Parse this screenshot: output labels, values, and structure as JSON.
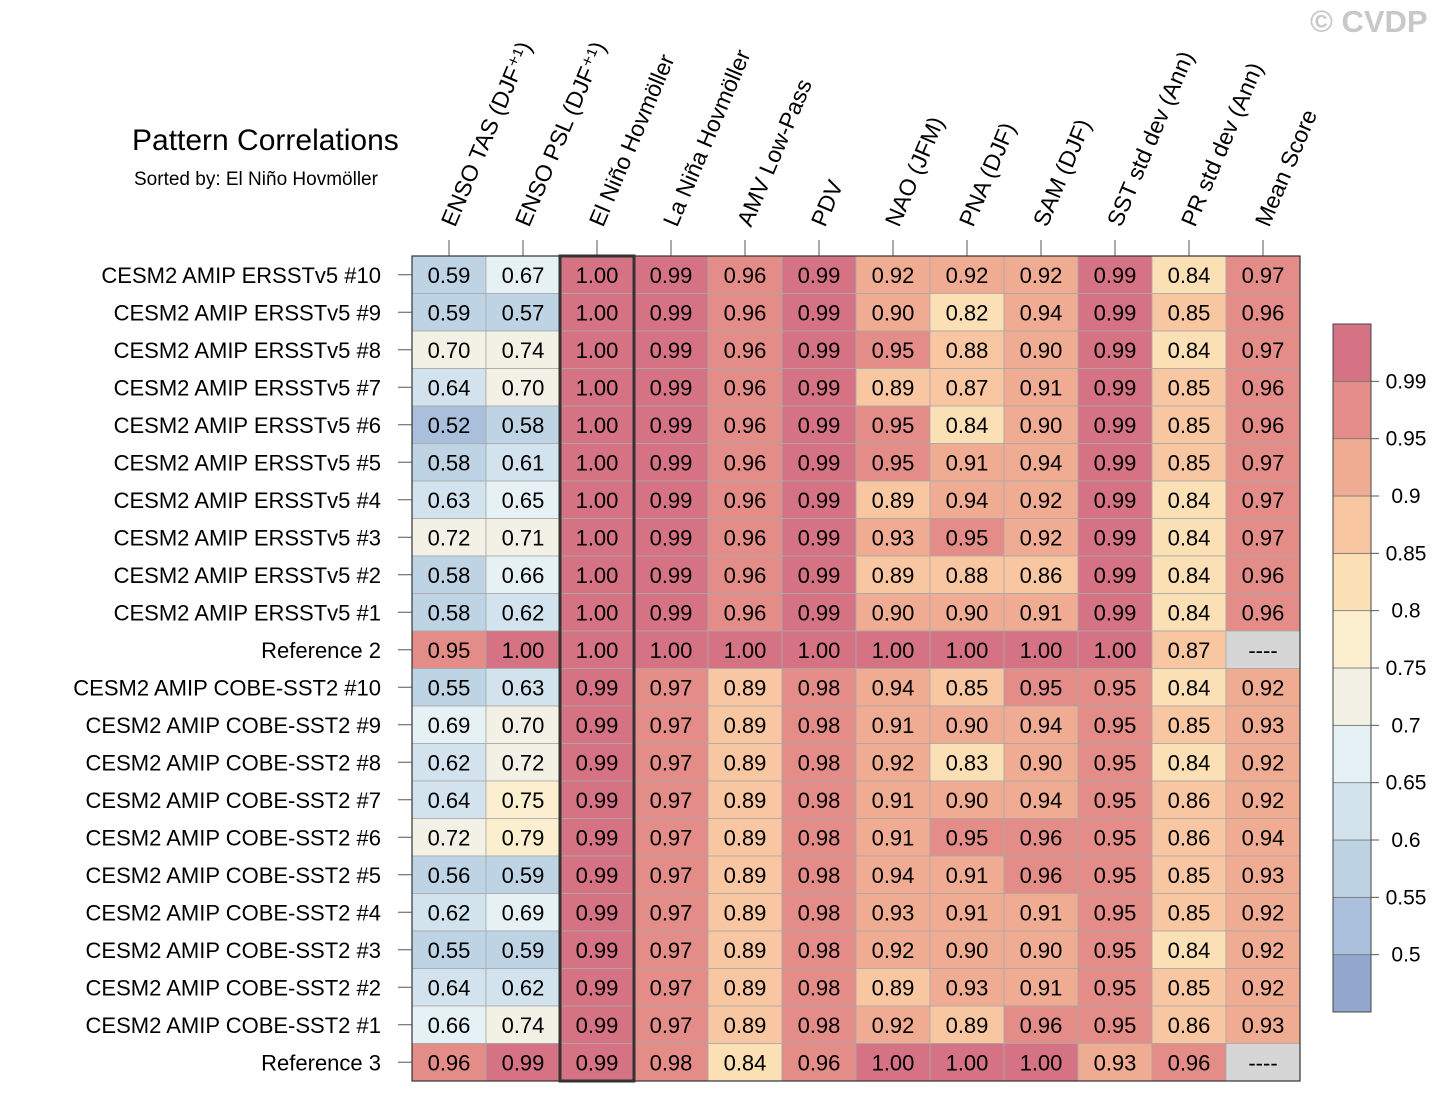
{
  "watermark": "© CVDP",
  "chart_data": {
    "type": "heatmap",
    "title": "Pattern Correlations",
    "subtitle": "Sorted by: El Niño Hovmöller",
    "highlighted_column": "El Niño Hovmöller",
    "columns": [
      "ENSO TAS (DJF⁺¹)",
      "ENSO PSL (DJF⁺¹)",
      "El Niño Hovmöller",
      "La Niña Hovmöller",
      "AMV Low-Pass",
      "PDV",
      "NAO (JFM)",
      "PNA (DJF)",
      "SAM (DJF)",
      "SST std dev (Ann)",
      "PR std dev (Ann)",
      "Mean Score"
    ],
    "rows": [
      {
        "label": "CESM2 AMIP ERSSTv5 #10",
        "values": [
          "0.59",
          "0.67",
          "1.00",
          "0.99",
          "0.96",
          "0.99",
          "0.92",
          "0.92",
          "0.92",
          "0.99",
          "0.84",
          "0.97"
        ]
      },
      {
        "label": "CESM2 AMIP ERSSTv5 #9",
        "values": [
          "0.59",
          "0.57",
          "1.00",
          "0.99",
          "0.96",
          "0.99",
          "0.90",
          "0.82",
          "0.94",
          "0.99",
          "0.85",
          "0.96"
        ]
      },
      {
        "label": "CESM2 AMIP ERSSTv5 #8",
        "values": [
          "0.70",
          "0.74",
          "1.00",
          "0.99",
          "0.96",
          "0.99",
          "0.95",
          "0.88",
          "0.90",
          "0.99",
          "0.84",
          "0.97"
        ]
      },
      {
        "label": "CESM2 AMIP ERSSTv5 #7",
        "values": [
          "0.64",
          "0.70",
          "1.00",
          "0.99",
          "0.96",
          "0.99",
          "0.89",
          "0.87",
          "0.91",
          "0.99",
          "0.85",
          "0.96"
        ]
      },
      {
        "label": "CESM2 AMIP ERSSTv5 #6",
        "values": [
          "0.52",
          "0.58",
          "1.00",
          "0.99",
          "0.96",
          "0.99",
          "0.95",
          "0.84",
          "0.90",
          "0.99",
          "0.85",
          "0.96"
        ]
      },
      {
        "label": "CESM2 AMIP ERSSTv5 #5",
        "values": [
          "0.58",
          "0.61",
          "1.00",
          "0.99",
          "0.96",
          "0.99",
          "0.95",
          "0.91",
          "0.94",
          "0.99",
          "0.85",
          "0.97"
        ]
      },
      {
        "label": "CESM2 AMIP ERSSTv5 #4",
        "values": [
          "0.63",
          "0.65",
          "1.00",
          "0.99",
          "0.96",
          "0.99",
          "0.89",
          "0.94",
          "0.92",
          "0.99",
          "0.84",
          "0.97"
        ]
      },
      {
        "label": "CESM2 AMIP ERSSTv5 #3",
        "values": [
          "0.72",
          "0.71",
          "1.00",
          "0.99",
          "0.96",
          "0.99",
          "0.93",
          "0.95",
          "0.92",
          "0.99",
          "0.84",
          "0.97"
        ]
      },
      {
        "label": "CESM2 AMIP ERSSTv5 #2",
        "values": [
          "0.58",
          "0.66",
          "1.00",
          "0.99",
          "0.96",
          "0.99",
          "0.89",
          "0.88",
          "0.86",
          "0.99",
          "0.84",
          "0.96"
        ]
      },
      {
        "label": "CESM2 AMIP ERSSTv5 #1",
        "values": [
          "0.58",
          "0.62",
          "1.00",
          "0.99",
          "0.96",
          "0.99",
          "0.90",
          "0.90",
          "0.91",
          "0.99",
          "0.84",
          "0.96"
        ]
      },
      {
        "label": "Reference 2",
        "values": [
          "0.95",
          "1.00",
          "1.00",
          "1.00",
          "1.00",
          "1.00",
          "1.00",
          "1.00",
          "1.00",
          "1.00",
          "0.87",
          "----"
        ]
      },
      {
        "label": "CESM2 AMIP COBE-SST2 #10",
        "values": [
          "0.55",
          "0.63",
          "0.99",
          "0.97",
          "0.89",
          "0.98",
          "0.94",
          "0.85",
          "0.95",
          "0.95",
          "0.84",
          "0.92"
        ]
      },
      {
        "label": "CESM2 AMIP COBE-SST2 #9",
        "values": [
          "0.69",
          "0.70",
          "0.99",
          "0.97",
          "0.89",
          "0.98",
          "0.91",
          "0.90",
          "0.94",
          "0.95",
          "0.85",
          "0.93"
        ]
      },
      {
        "label": "CESM2 AMIP COBE-SST2 #8",
        "values": [
          "0.62",
          "0.72",
          "0.99",
          "0.97",
          "0.89",
          "0.98",
          "0.92",
          "0.83",
          "0.90",
          "0.95",
          "0.84",
          "0.92"
        ]
      },
      {
        "label": "CESM2 AMIP COBE-SST2 #7",
        "values": [
          "0.64",
          "0.75",
          "0.99",
          "0.97",
          "0.89",
          "0.98",
          "0.91",
          "0.90",
          "0.94",
          "0.95",
          "0.86",
          "0.92"
        ]
      },
      {
        "label": "CESM2 AMIP COBE-SST2 #6",
        "values": [
          "0.72",
          "0.79",
          "0.99",
          "0.97",
          "0.89",
          "0.98",
          "0.91",
          "0.95",
          "0.96",
          "0.95",
          "0.86",
          "0.94"
        ]
      },
      {
        "label": "CESM2 AMIP COBE-SST2 #5",
        "values": [
          "0.56",
          "0.59",
          "0.99",
          "0.97",
          "0.89",
          "0.98",
          "0.94",
          "0.91",
          "0.96",
          "0.95",
          "0.85",
          "0.93"
        ]
      },
      {
        "label": "CESM2 AMIP COBE-SST2 #4",
        "values": [
          "0.62",
          "0.69",
          "0.99",
          "0.97",
          "0.89",
          "0.98",
          "0.93",
          "0.91",
          "0.91",
          "0.95",
          "0.85",
          "0.92"
        ]
      },
      {
        "label": "CESM2 AMIP COBE-SST2 #3",
        "values": [
          "0.55",
          "0.59",
          "0.99",
          "0.97",
          "0.89",
          "0.98",
          "0.92",
          "0.90",
          "0.90",
          "0.95",
          "0.84",
          "0.92"
        ]
      },
      {
        "label": "CESM2 AMIP COBE-SST2 #2",
        "values": [
          "0.64",
          "0.62",
          "0.99",
          "0.97",
          "0.89",
          "0.98",
          "0.89",
          "0.93",
          "0.91",
          "0.95",
          "0.85",
          "0.92"
        ]
      },
      {
        "label": "CESM2 AMIP COBE-SST2 #1",
        "values": [
          "0.66",
          "0.74",
          "0.99",
          "0.97",
          "0.89",
          "0.98",
          "0.92",
          "0.89",
          "0.96",
          "0.95",
          "0.86",
          "0.93"
        ]
      },
      {
        "label": "Reference 3",
        "values": [
          "0.96",
          "0.99",
          "0.99",
          "0.98",
          "0.84",
          "0.96",
          "1.00",
          "1.00",
          "1.00",
          "0.93",
          "0.96",
          "----"
        ]
      }
    ],
    "colorbar": {
      "levels": [
        0.5,
        0.55,
        0.6,
        0.65,
        0.7,
        0.75,
        0.8,
        0.85,
        0.9,
        0.95,
        0.99
      ],
      "labels": [
        "0.5",
        "0.55",
        "0.6",
        "0.65",
        "0.7",
        "0.75",
        "0.8",
        "0.85",
        "0.9",
        "0.95",
        "0.99"
      ],
      "colors": [
        "#93a6cd",
        "#a9bfdb",
        "#bed4e5",
        "#d2e3ee",
        "#e6f1f5",
        "#f3f1e5",
        "#fbefcf",
        "#fbdfb5",
        "#f8c7a2",
        "#f0ac93",
        "#e48d88",
        "#d57284"
      ],
      "missing_color": "#d6d6d6"
    }
  }
}
